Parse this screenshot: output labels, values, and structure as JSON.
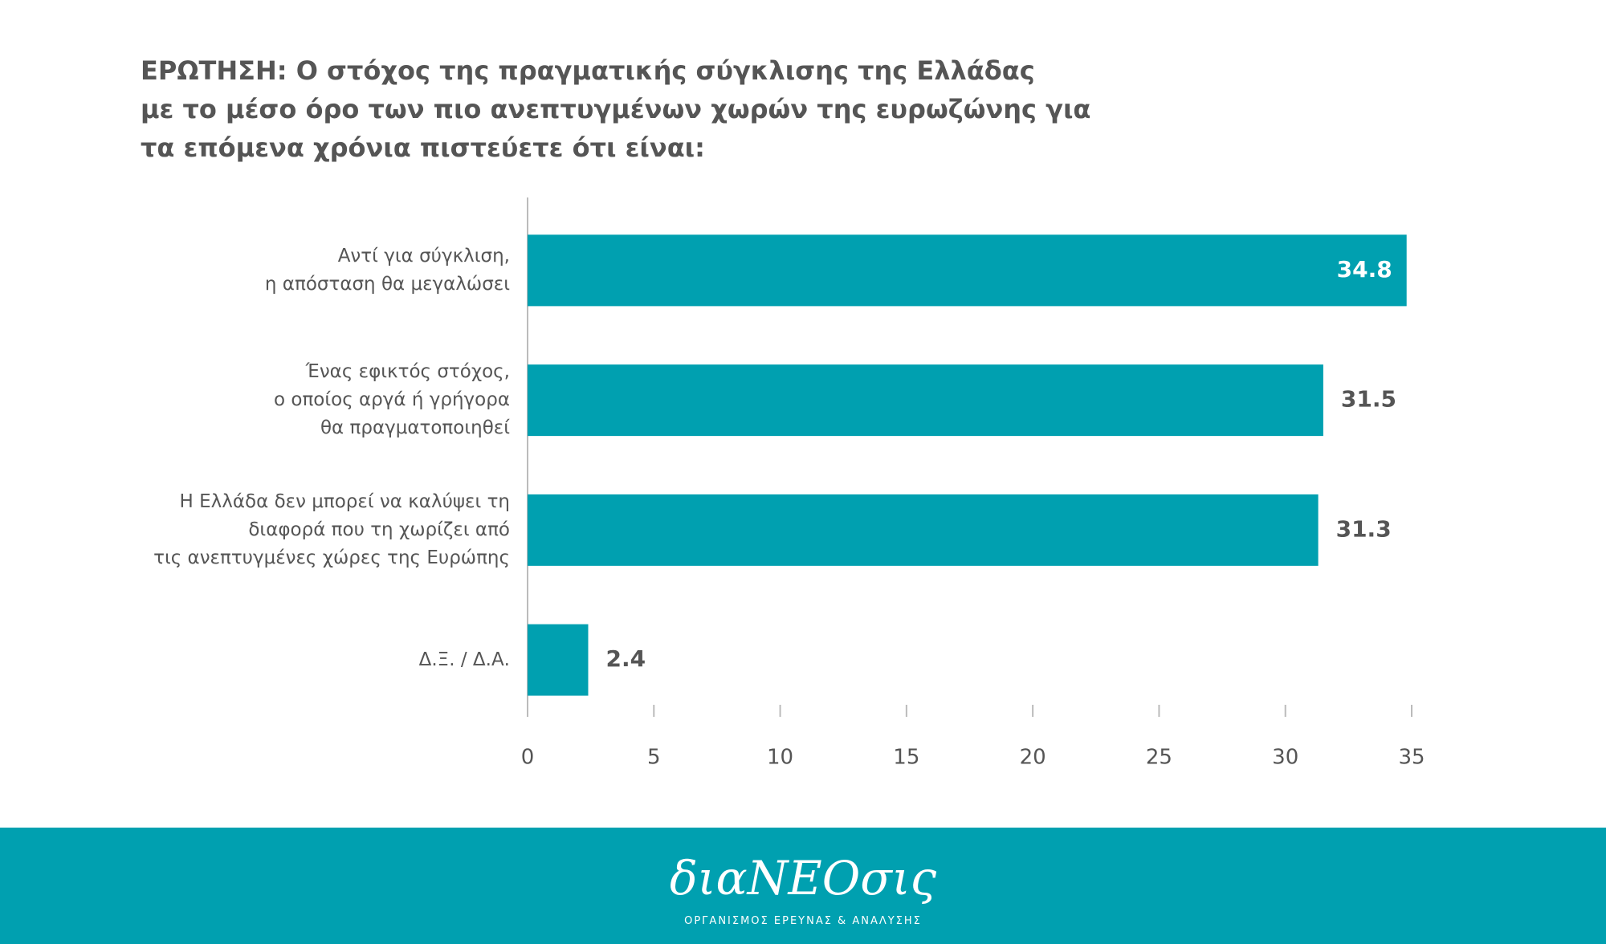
{
  "chart_data": {
    "type": "barh",
    "title": "ΕΡΩΤΗΣΗ: Ο στόχος της πραγματικής σύγκλισης της Ελλάδας\nμε το μέσο όρο των πιο ανεπτυγμένων χωρών της ευρωζώνης για\nτα επόμενα χρόνια πιστεύετε ότι είναι:",
    "categories": [
      "Αντί για σύγκλιση,\nη απόσταση θα μεγαλώσει",
      "Ένας εφικτός στόχος,\nο οποίος αργά ή γρήγορα\nθα πραγματοποιηθεί",
      "Η Ελλάδα δεν μπορεί να καλύψει τη\nδιαφορά που τη χωρίζει από\nτις ανεπτυγμένες χώρες της Ευρώπης",
      "Δ.Ξ. / Δ.Α."
    ],
    "values": [
      34.8,
      31.5,
      31.3,
      2.4
    ],
    "color": "#00a0b0",
    "xlim": [
      0,
      35
    ],
    "xticks": [
      0,
      5,
      10,
      15,
      20,
      25,
      30,
      35
    ]
  },
  "footer": {
    "logo": "διαΝΕΟσις",
    "tagline": "ΟΡΓΑΝΙΣΜΟΣ ΕΡΕΥΝΑΣ & ΑΝΑΛΥΣΗΣ"
  }
}
